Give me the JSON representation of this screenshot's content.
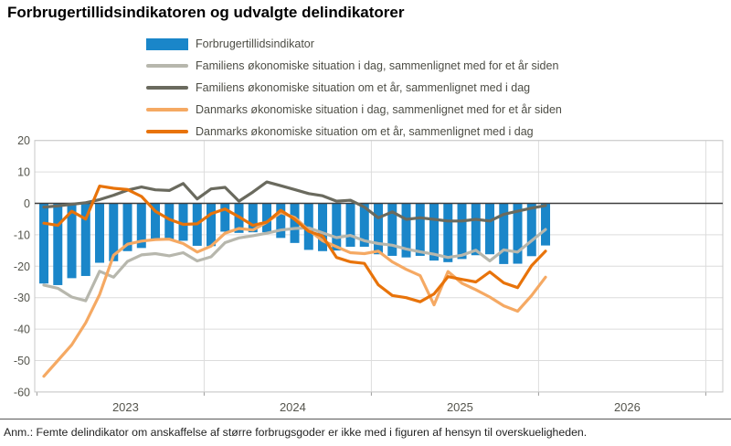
{
  "title": "Forbrugertillidsindikatoren og udvalgte delindikatorer",
  "footnote": "Anm.: Femte delindikator om anskaffelse af større forbrugsgoder er ikke med i figuren af hensyn til overskueligheden.",
  "colors": {
    "bar_blue": "#1a86c9",
    "light_gray": "#b7b7ad",
    "dark_gray": "#6a6a5e",
    "light_orange": "#f5a963",
    "dark_orange": "#e8730a",
    "grid": "#dcdcdc",
    "zero_line": "#3f3f3f",
    "plot_border": "#c8c8c8",
    "axis_text": "#55554d"
  },
  "chart_data": {
    "type": "bar",
    "note": "bar series plus four line series, monthly data",
    "x": [
      "2023-01",
      "2023-02",
      "2023-03",
      "2023-04",
      "2023-05",
      "2023-06",
      "2023-07",
      "2023-08",
      "2023-09",
      "2023-10",
      "2023-11",
      "2023-12",
      "2024-01",
      "2024-02",
      "2024-03",
      "2024-04",
      "2024-05",
      "2024-06",
      "2024-07",
      "2024-08",
      "2024-09",
      "2024-10",
      "2024-11",
      "2024-12",
      "2025-01",
      "2025-02",
      "2025-03",
      "2025-04",
      "2025-05",
      "2025-06",
      "2025-07",
      "2025-08",
      "2025-09",
      "2025-10",
      "2025-11",
      "2025-12",
      "2026-01"
    ],
    "x_axis": {
      "year_labels": [
        "2023",
        "2024",
        "2025",
        "2026"
      ],
      "months_per_year": 12
    },
    "y_axis": {
      "ticks": [
        20,
        10,
        0,
        -10,
        -20,
        -30,
        -40,
        -50,
        -60
      ],
      "min": -60,
      "max": 20,
      "grid": true
    },
    "legend_position": "top",
    "series": [
      {
        "name": "Forbrugertillidsindikator",
        "type": "bar",
        "color_key": "bar_blue",
        "values": [
          -25.5,
          -26.0,
          -23.8,
          -23.1,
          -18.9,
          -18.4,
          -15.2,
          -14.2,
          -11.6,
          -11.4,
          -11.9,
          -13.5,
          -13.6,
          -9.0,
          -9.4,
          -9.2,
          -9.2,
          -11.0,
          -12.6,
          -14.8,
          -15.2,
          -15.0,
          -13.8,
          -13.8,
          -16.2,
          -16.7,
          -17.2,
          -16.7,
          -18.2,
          -18.7,
          -17.7,
          -16.5,
          -16.2,
          -19.3,
          -19.2,
          -16.8,
          -13.4
        ]
      },
      {
        "name": "Familiens økonomiske situation i dag, sammenlignet med for et år siden",
        "type": "line",
        "color_key": "light_gray",
        "values": [
          -26.0,
          -27.0,
          -29.8,
          -31.0,
          -21.6,
          -23.5,
          -18.5,
          -16.4,
          -16.0,
          -16.7,
          -15.7,
          -18.3,
          -17.0,
          -12.5,
          -11.0,
          -10.3,
          -9.5,
          -8.5,
          -8.0,
          -7.8,
          -9.4,
          -10.9,
          -10.2,
          -11.9,
          -12.8,
          -13.3,
          -14.5,
          -15.4,
          -16.2,
          -17.2,
          -16.5,
          -14.9,
          -18.3,
          -14.8,
          -15.5,
          -11.9,
          -8.3
        ]
      },
      {
        "name": "Familiens økonomiske situation om et år, sammenlignet med i dag",
        "type": "line",
        "color_key": "dark_gray",
        "values": [
          -1.2,
          -0.8,
          -0.3,
          0.2,
          1.2,
          2.6,
          4.2,
          5.2,
          4.3,
          4.1,
          6.3,
          1.4,
          4.6,
          5.1,
          0.7,
          3.6,
          6.8,
          5.6,
          4.4,
          3.1,
          2.4,
          0.7,
          1.0,
          -1.2,
          -4.6,
          -2.7,
          -5.1,
          -4.6,
          -5.1,
          -5.6,
          -5.6,
          -5.1,
          -5.6,
          -3.5,
          -2.5,
          -1.5,
          -0.7
        ]
      },
      {
        "name": "Danmarks økonomiske situation i dag, sammenlignet med for et år siden",
        "type": "line",
        "color_key": "light_orange",
        "values": [
          -55.0,
          -50.0,
          -45.0,
          -38.0,
          -29.0,
          -16.5,
          -13.0,
          -12.0,
          -11.5,
          -11.4,
          -12.8,
          -15.5,
          -13.6,
          -9.5,
          -8.0,
          -8.5,
          -6.0,
          -2.9,
          -4.5,
          -8.5,
          -11.9,
          -13.8,
          -15.7,
          -16.0,
          -15.2,
          -18.6,
          -21.0,
          -23.0,
          -32.3,
          -21.7,
          -25.4,
          -27.5,
          -29.8,
          -32.6,
          -34.3,
          -29.3,
          -23.5
        ]
      },
      {
        "name": "Danmarks økonomiske situation om et år, sammenlignet med i dag",
        "type": "line",
        "color_key": "dark_orange",
        "values": [
          -6.3,
          -7.0,
          -2.5,
          -5.0,
          5.5,
          4.8,
          4.4,
          2.2,
          -2.5,
          -5.1,
          -6.7,
          -6.5,
          -3.3,
          -1.8,
          -4.3,
          -7.0,
          -6.0,
          -2.2,
          -5.1,
          -8.9,
          -10.4,
          -17.2,
          -18.6,
          -19.1,
          -25.9,
          -29.3,
          -30.0,
          -31.3,
          -28.8,
          -23.3,
          -24.2,
          -25.0,
          -21.8,
          -25.3,
          -26.8,
          -19.8,
          -15.2
        ]
      }
    ]
  }
}
